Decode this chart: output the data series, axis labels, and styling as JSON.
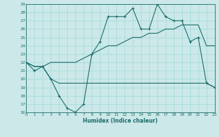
{
  "title": "",
  "xlabel": "Humidex (Indice chaleur)",
  "bg_color": "#cce8e8",
  "grid_color": "#aadddd",
  "line_color": "#1a6b6b",
  "ylim": [
    16,
    29
  ],
  "xlim": [
    0,
    23
  ],
  "yticks": [
    16,
    17,
    18,
    19,
    20,
    21,
    22,
    23,
    24,
    25,
    26,
    27,
    28,
    29
  ],
  "xticks": [
    0,
    1,
    2,
    3,
    4,
    5,
    6,
    7,
    8,
    9,
    10,
    11,
    12,
    13,
    14,
    15,
    16,
    17,
    18,
    19,
    20,
    21,
    22,
    23
  ],
  "line1_x": [
    0,
    1,
    2,
    3,
    4,
    5,
    6,
    7,
    8,
    9,
    10,
    11,
    12,
    13,
    14,
    15,
    16,
    17,
    18,
    19,
    20,
    21,
    22,
    23
  ],
  "line1_y": [
    22,
    21,
    21.5,
    20,
    18,
    16.5,
    16,
    17,
    23,
    24.5,
    27.5,
    27.5,
    27.5,
    28.5,
    26,
    26,
    29,
    27.5,
    27,
    27,
    24.5,
    25,
    19.5,
    19
  ],
  "line2_x": [
    0,
    1,
    2,
    3,
    4,
    5,
    6,
    7,
    8,
    9,
    10,
    11,
    12,
    13,
    14,
    15,
    16,
    17,
    18,
    19,
    20,
    21,
    22,
    23
  ],
  "line2_y": [
    22,
    21.5,
    21.5,
    22,
    22,
    22,
    22,
    22.5,
    23,
    23.5,
    24,
    24,
    24.5,
    25,
    25,
    25.5,
    25.5,
    26,
    26,
    26.5,
    26.5,
    26.5,
    24,
    24
  ],
  "line3_x": [
    0,
    1,
    2,
    3,
    4,
    5,
    6,
    7,
    8,
    9,
    10,
    11,
    12,
    13,
    14,
    15,
    16,
    17,
    18,
    19,
    20,
    21,
    22,
    23
  ],
  "line3_y": [
    22,
    21.5,
    21.5,
    20,
    19.5,
    19.5,
    19.5,
    19.5,
    19.5,
    19.5,
    19.5,
    19.5,
    19.5,
    19.5,
    19.5,
    19.5,
    19.5,
    19.5,
    19.5,
    19.5,
    19.5,
    19.5,
    19.5,
    19
  ]
}
